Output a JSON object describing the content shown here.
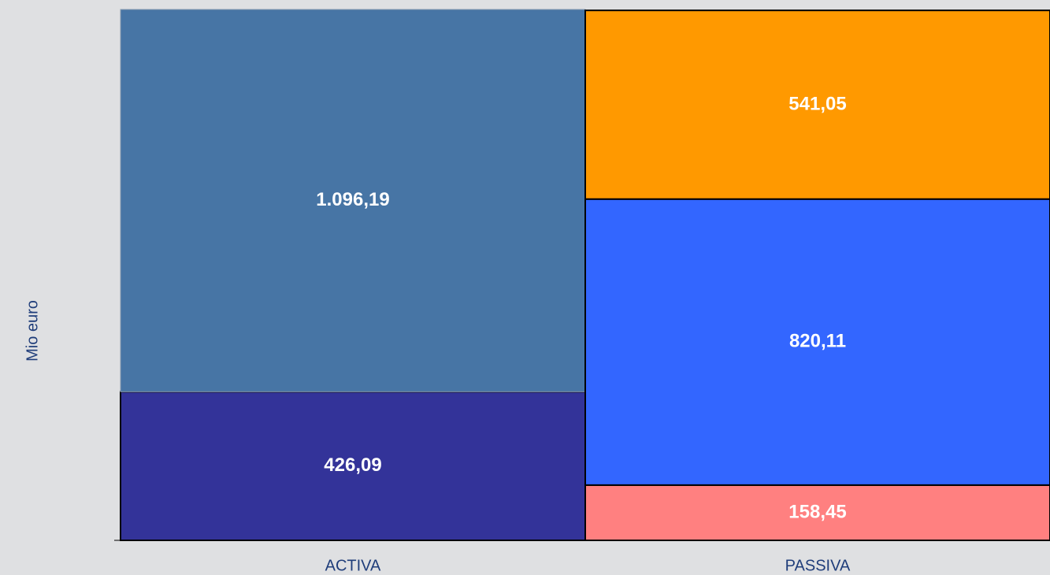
{
  "chart_data": {
    "type": "stacked_bar",
    "y_label": "Mio euro",
    "categories": [
      "ACTIVA",
      "PASSIVA"
    ],
    "series": [
      {
        "colors": [
          "#333399",
          "#ff8080"
        ],
        "values": [
          426.09,
          158.45
        ],
        "value_labels": [
          "426,09",
          "158,45"
        ]
      },
      {
        "colors": [
          "#4775a5",
          "#3366ff"
        ],
        "values": [
          1096.19,
          820.11
        ],
        "value_labels": [
          "1.096,19",
          "820,11"
        ]
      },
      {
        "colors": [
          null,
          "#ff9900"
        ],
        "values": [
          null,
          541.05
        ],
        "value_labels": [
          null,
          "541,05"
        ]
      }
    ],
    "ylim": [
      0,
      1522.28
    ]
  }
}
